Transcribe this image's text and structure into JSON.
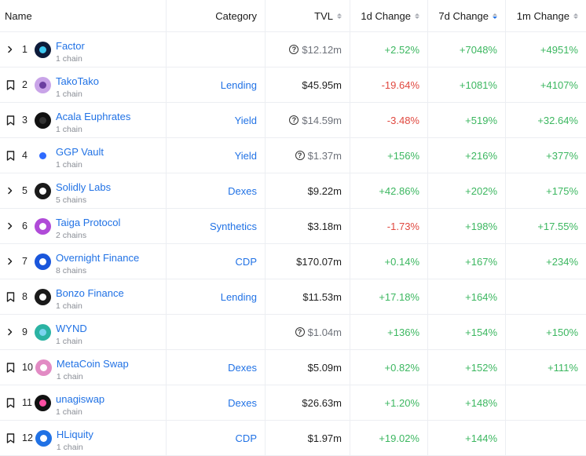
{
  "header": {
    "name": "Name",
    "category": "Category",
    "tvl": "TVL",
    "d1": "1d Change",
    "d7": "7d Change",
    "m1": "1m Change"
  },
  "rows": [
    {
      "lead": "chevron",
      "rank": "1",
      "name": "Factor",
      "chains": "1 chain",
      "category": "",
      "tvl": "$12.12m",
      "tvl_q": true,
      "d1": "+2.52%",
      "d7": "+7048%",
      "m1": "+4951%",
      "logo": {
        "bg": "#0d1b3a",
        "fg": "#3ec8f0",
        "icon": "factor-logo-icon"
      }
    },
    {
      "lead": "bookmark",
      "rank": "2",
      "name": "TakoTako",
      "chains": "1 chain",
      "category": "Lending",
      "tvl": "$45.95m",
      "tvl_q": false,
      "d1": "-19.64%",
      "d7": "+1081%",
      "m1": "+4107%",
      "logo": {
        "bg": "#c9a4e8",
        "fg": "#6b3fa0",
        "icon": "takotako-logo-icon"
      }
    },
    {
      "lead": "bookmark",
      "rank": "3",
      "name": "Acala Euphrates",
      "chains": "1 chain",
      "category": "Yield",
      "tvl": "$14.59m",
      "tvl_q": true,
      "d1": "-3.48%",
      "d7": "+519%",
      "m1": "+32.64%",
      "logo": {
        "bg": "#111111",
        "fg": "#333333",
        "icon": "acala-logo-icon"
      }
    },
    {
      "lead": "bookmark",
      "rank": "4",
      "name": "GGP Vault",
      "chains": "1 chain",
      "category": "Yield",
      "tvl": "$1.37m",
      "tvl_q": true,
      "d1": "+156%",
      "d7": "+216%",
      "m1": "+377%",
      "logo": {
        "bg": "#ffffff",
        "fg": "#2f6bff",
        "icon": "ggp-logo-icon"
      }
    },
    {
      "lead": "chevron",
      "rank": "5",
      "name": "Solidly Labs",
      "chains": "5 chains",
      "category": "Dexes",
      "tvl": "$9.22m",
      "tvl_q": false,
      "d1": "+42.86%",
      "d7": "+202%",
      "m1": "+175%",
      "logo": {
        "bg": "#1a1a1a",
        "fg": "#ffffff",
        "icon": "solidly-logo-icon"
      }
    },
    {
      "lead": "chevron",
      "rank": "6",
      "name": "Taiga Protocol",
      "chains": "2 chains",
      "category": "Synthetics",
      "tvl": "$3.18m",
      "tvl_q": false,
      "d1": "-1.73%",
      "d7": "+198%",
      "m1": "+17.55%",
      "logo": {
        "bg": "#b04bd8",
        "fg": "#ffffff",
        "icon": "taiga-logo-icon"
      }
    },
    {
      "lead": "chevron",
      "rank": "7",
      "name": "Overnight Finance",
      "chains": "8 chains",
      "category": "CDP",
      "tvl": "$170.07m",
      "tvl_q": false,
      "d1": "+0.14%",
      "d7": "+167%",
      "m1": "+234%",
      "logo": {
        "bg": "#1a56db",
        "fg": "#ffffff",
        "icon": "overnight-logo-icon"
      }
    },
    {
      "lead": "bookmark",
      "rank": "8",
      "name": "Bonzo Finance",
      "chains": "1 chain",
      "category": "Lending",
      "tvl": "$11.53m",
      "tvl_q": false,
      "d1": "+17.18%",
      "d7": "+164%",
      "m1": "",
      "logo": {
        "bg": "#1a1a1a",
        "fg": "#ffffff",
        "icon": "bonzo-logo-icon"
      }
    },
    {
      "lead": "chevron",
      "rank": "9",
      "name": "WYND",
      "chains": "1 chain",
      "category": "",
      "tvl": "$1.04m",
      "tvl_q": true,
      "d1": "+136%",
      "d7": "+154%",
      "m1": "+150%",
      "logo": {
        "bg": "#2bb3a3",
        "fg": "#7bd4f0",
        "icon": "wynd-logo-icon"
      }
    },
    {
      "lead": "bookmark",
      "rank": "10",
      "name": "MetaCoin Swap",
      "chains": "1 chain",
      "category": "Dexes",
      "tvl": "$5.09m",
      "tvl_q": false,
      "d1": "+0.82%",
      "d7": "+152%",
      "m1": "+111%",
      "logo": {
        "bg": "#e28bc4",
        "fg": "#ffffff",
        "icon": "metacoin-logo-icon"
      }
    },
    {
      "lead": "bookmark",
      "rank": "11",
      "name": "unagiswap",
      "chains": "1 chain",
      "category": "Dexes",
      "tvl": "$26.63m",
      "tvl_q": false,
      "d1": "+1.20%",
      "d7": "+148%",
      "m1": "",
      "logo": {
        "bg": "#111111",
        "fg": "#ff4fa3",
        "icon": "unagi-logo-icon"
      }
    },
    {
      "lead": "bookmark",
      "rank": "12",
      "name": "HLiquity",
      "chains": "1 chain",
      "category": "CDP",
      "tvl": "$1.97m",
      "tvl_q": false,
      "d1": "+19.02%",
      "d7": "+144%",
      "m1": "",
      "logo": {
        "bg": "#2172e5",
        "fg": "#ffffff",
        "icon": "hliquity-logo-icon"
      }
    }
  ]
}
